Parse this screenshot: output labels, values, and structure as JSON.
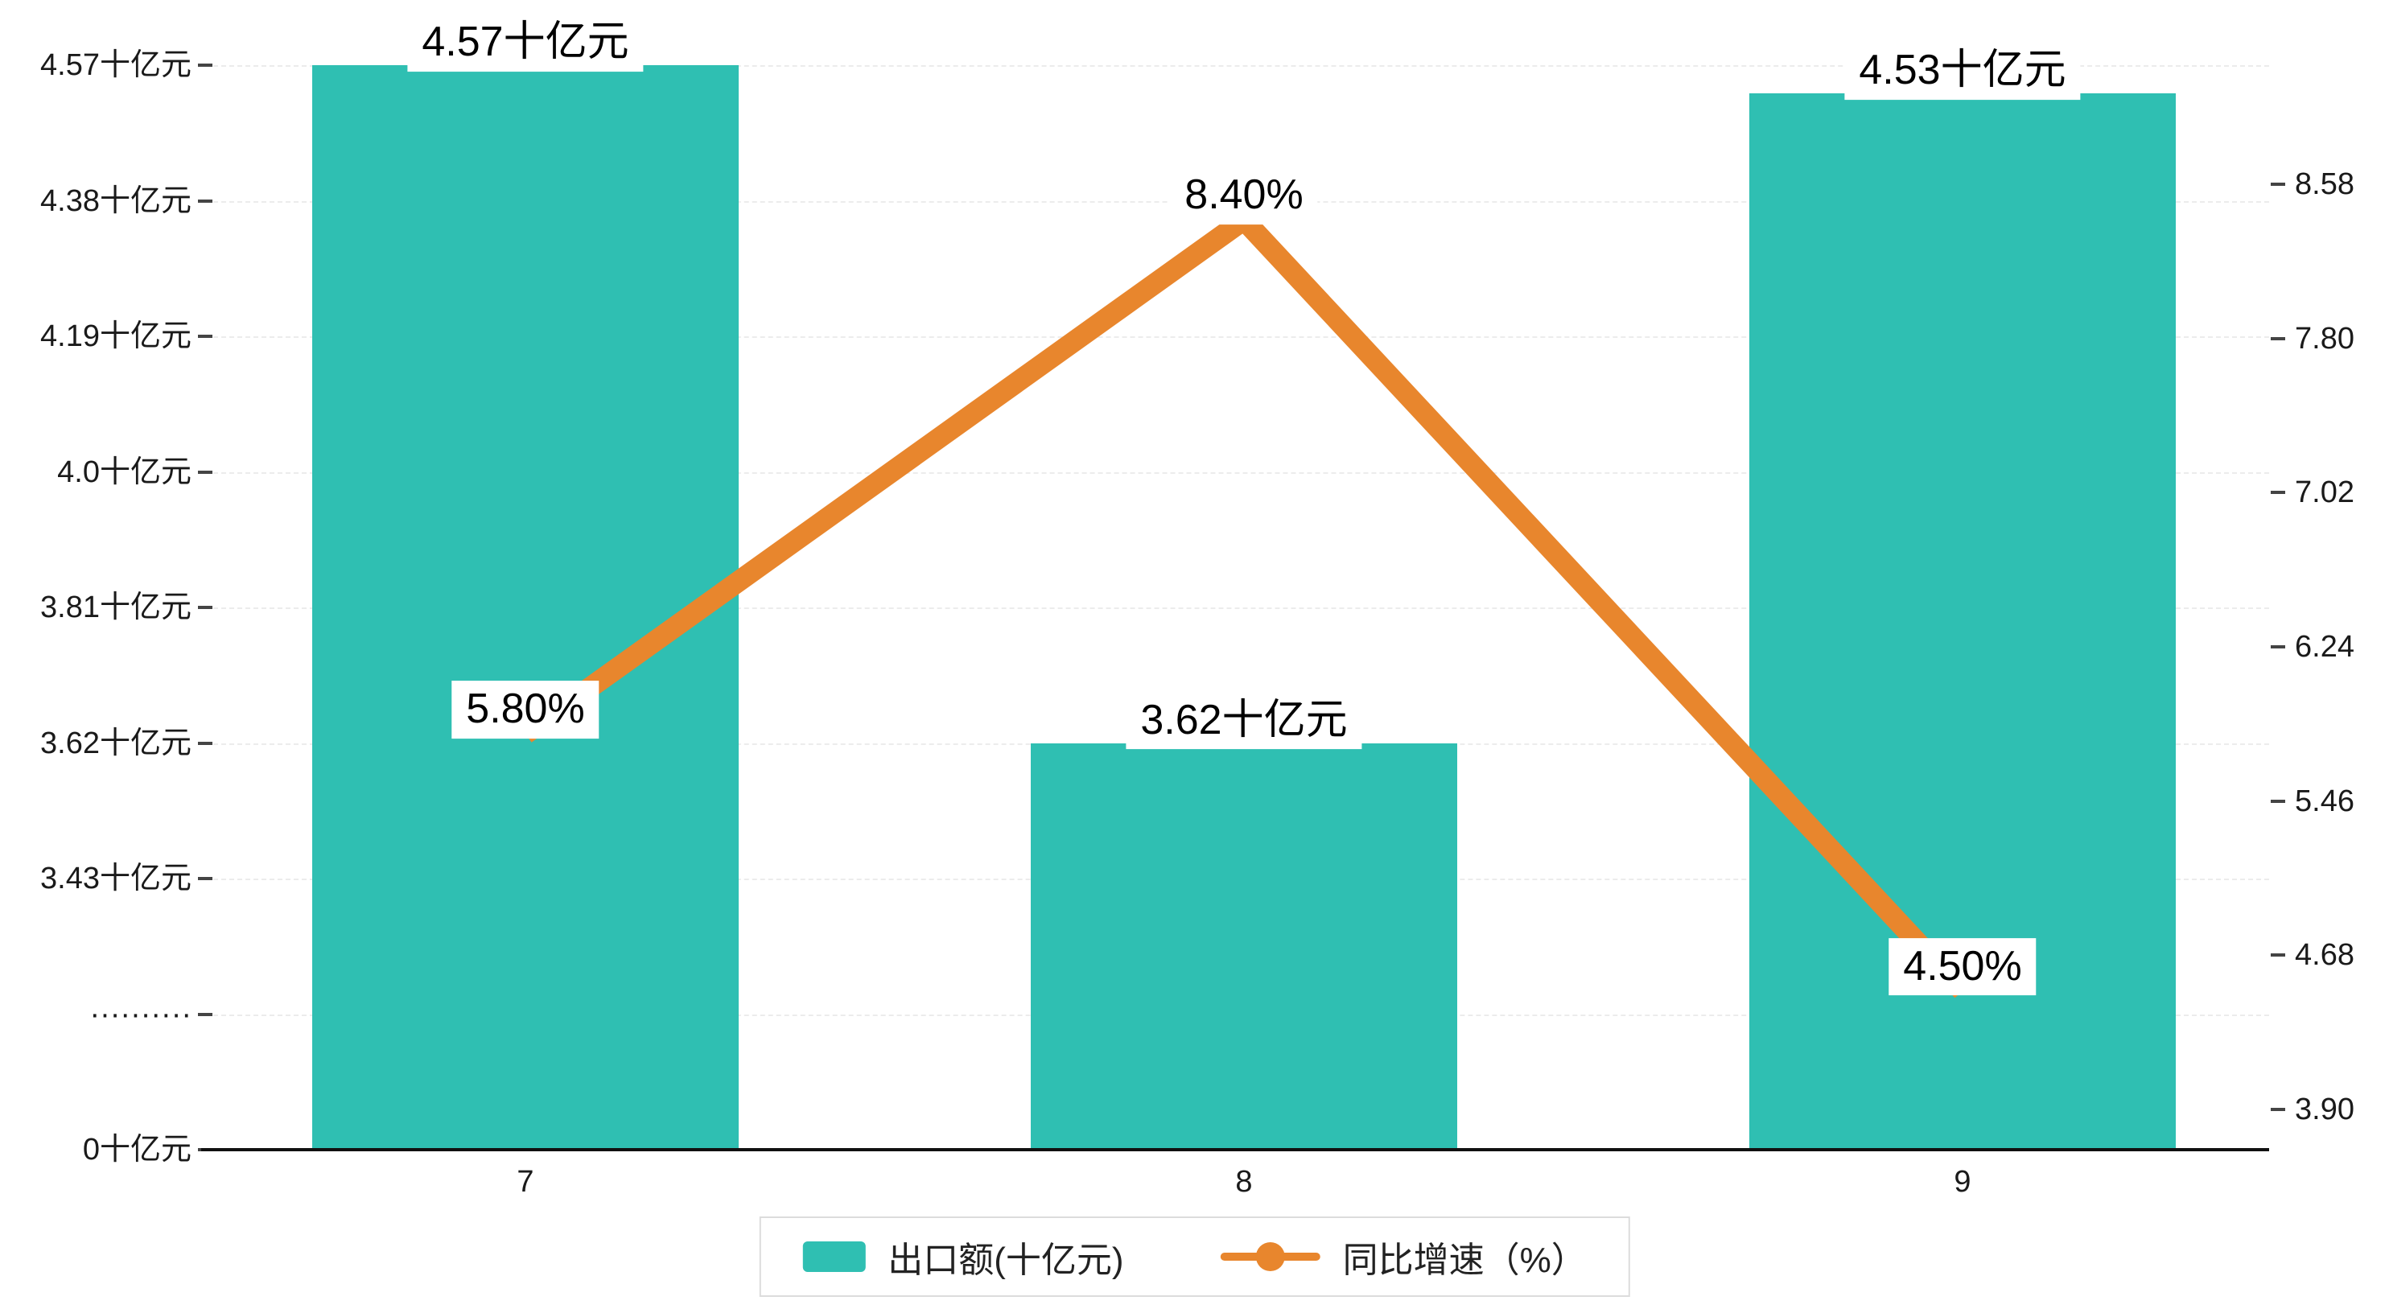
{
  "chart_data": {
    "type": "bar",
    "subtype": "bar+line combo, dual y-axis",
    "categories": [
      "7",
      "8",
      "9"
    ],
    "series": [
      {
        "name": "出口额(十亿元)",
        "type": "bar",
        "values": [
          4.57,
          3.62,
          4.53
        ],
        "labels": [
          "4.57十亿元",
          "3.62十亿元",
          "4.53十亿元"
        ],
        "color": "#2fbfb2"
      },
      {
        "name": "同比增速（%）",
        "type": "line",
        "values": [
          5.8,
          8.4,
          4.5
        ],
        "labels": [
          "5.80%",
          "8.40%",
          "4.50%"
        ],
        "color": "#e8862d"
      }
    ],
    "left_axis": {
      "tick_labels": [
        "4.57十亿元",
        "4.38十亿元",
        "4.19十亿元",
        "4.0十亿元",
        "3.81十亿元",
        "3.62十亿元",
        "3.43十亿元",
        "··········",
        "0十亿元"
      ],
      "top_value": 4.57,
      "step": 0.19,
      "has_break": true
    },
    "right_axis": {
      "tick_labels": [
        "8.58",
        "7.80",
        "7.02",
        "6.24",
        "5.46",
        "4.68",
        "3.90"
      ],
      "max": 8.58,
      "min": 3.9
    },
    "legend": {
      "items": [
        "出口额(十亿元)",
        "同比增速（%）"
      ]
    },
    "grid": "horizontal dashed, on",
    "legend_position": "bottom center"
  },
  "colors": {
    "bar": "#2fbfb2",
    "line": "#e8862d",
    "axis_text": "#1a1a1a",
    "gridline": "#ececec",
    "background": "#ffffff"
  }
}
